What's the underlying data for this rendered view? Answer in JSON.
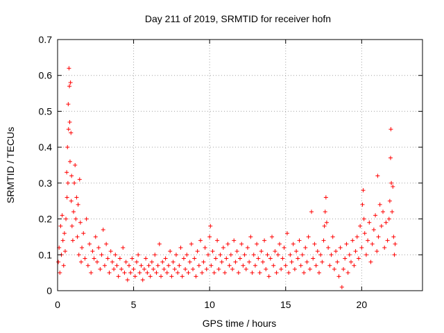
{
  "chart_data": {
    "type": "scatter",
    "title": "Day 211 of 2019, SRMTID for receiver hofn",
    "xlabel": "GPS time / hours",
    "ylabel": "SRMTID / TECUs",
    "xlim": [
      0,
      24
    ],
    "ylim": [
      0,
      0.7
    ],
    "xticks": [
      0,
      5,
      10,
      15,
      20
    ],
    "xtick_labels": [
      "0",
      "5",
      "10",
      "15",
      "20"
    ],
    "yticks": [
      0,
      0.1,
      0.2,
      0.3,
      0.4,
      0.5,
      0.6,
      0.7
    ],
    "ytick_labels": [
      "0",
      "0.1",
      "0.2",
      "0.3",
      "0.4",
      "0.5",
      "0.6",
      "0.7"
    ],
    "grid": true,
    "marker": "+",
    "series": [
      {
        "name": "SRMTID",
        "color": "#ff0000",
        "points": [
          [
            0.05,
            0.08
          ],
          [
            0.1,
            0.12
          ],
          [
            0.15,
            0.05
          ],
          [
            0.2,
            0.18
          ],
          [
            0.25,
            0.1
          ],
          [
            0.3,
            0.21
          ],
          [
            0.35,
            0.14
          ],
          [
            0.4,
            0.07
          ],
          [
            0.45,
            0.16
          ],
          [
            0.5,
            0.11
          ],
          [
            0.55,
            0.2
          ],
          [
            0.6,
            0.33
          ],
          [
            0.62,
            0.26
          ],
          [
            0.65,
            0.4
          ],
          [
            0.68,
            0.3
          ],
          [
            0.7,
            0.52
          ],
          [
            0.72,
            0.45
          ],
          [
            0.75,
            0.62
          ],
          [
            0.78,
            0.57
          ],
          [
            0.8,
            0.47
          ],
          [
            0.82,
            0.36
          ],
          [
            0.85,
            0.58
          ],
          [
            0.88,
            0.44
          ],
          [
            0.9,
            0.25
          ],
          [
            0.92,
            0.32
          ],
          [
            0.95,
            0.18
          ],
          [
            1.0,
            0.14
          ],
          [
            1.05,
            0.22
          ],
          [
            1.1,
            0.3
          ],
          [
            1.15,
            0.35
          ],
          [
            1.2,
            0.2
          ],
          [
            1.25,
            0.26
          ],
          [
            1.3,
            0.15
          ],
          [
            1.35,
            0.24
          ],
          [
            1.4,
            0.1
          ],
          [
            1.45,
            0.31
          ],
          [
            1.5,
            0.19
          ],
          [
            1.55,
            0.08
          ],
          [
            1.6,
            0.12
          ],
          [
            1.7,
            0.16
          ],
          [
            1.8,
            0.09
          ],
          [
            1.9,
            0.2
          ],
          [
            2.0,
            0.07
          ],
          [
            2.1,
            0.13
          ],
          [
            2.2,
            0.05
          ],
          [
            2.3,
            0.11
          ],
          [
            2.4,
            0.09
          ],
          [
            2.5,
            0.15
          ],
          [
            2.6,
            0.08
          ],
          [
            2.7,
            0.12
          ],
          [
            2.8,
            0.06
          ],
          [
            2.9,
            0.1
          ],
          [
            3.0,
            0.17
          ],
          [
            3.1,
            0.07
          ],
          [
            3.2,
            0.13
          ],
          [
            3.3,
            0.09
          ],
          [
            3.4,
            0.05
          ],
          [
            3.5,
            0.11
          ],
          [
            3.6,
            0.08
          ],
          [
            3.7,
            0.06
          ],
          [
            3.8,
            0.1
          ],
          [
            3.9,
            0.07
          ],
          [
            4.0,
            0.04
          ],
          [
            4.1,
            0.09
          ],
          [
            4.2,
            0.06
          ],
          [
            4.3,
            0.12
          ],
          [
            4.4,
            0.05
          ],
          [
            4.5,
            0.08
          ],
          [
            4.6,
            0.03
          ],
          [
            4.7,
            0.07
          ],
          [
            4.8,
            0.05
          ],
          [
            4.9,
            0.09
          ],
          [
            5.0,
            0.06
          ],
          [
            5.1,
            0.04
          ],
          [
            5.2,
            0.08
          ],
          [
            5.3,
            0.1
          ],
          [
            5.4,
            0.05
          ],
          [
            5.5,
            0.07
          ],
          [
            5.6,
            0.03
          ],
          [
            5.7,
            0.06
          ],
          [
            5.8,
            0.09
          ],
          [
            5.9,
            0.05
          ],
          [
            6.0,
            0.07
          ],
          [
            6.1,
            0.04
          ],
          [
            6.2,
            0.08
          ],
          [
            6.3,
            0.06
          ],
          [
            6.4,
            0.1
          ],
          [
            6.5,
            0.05
          ],
          [
            6.6,
            0.07
          ],
          [
            6.7,
            0.13
          ],
          [
            6.8,
            0.04
          ],
          [
            6.9,
            0.08
          ],
          [
            7.0,
            0.06
          ],
          [
            7.1,
            0.09
          ],
          [
            7.2,
            0.05
          ],
          [
            7.3,
            0.07
          ],
          [
            7.4,
            0.11
          ],
          [
            7.5,
            0.04
          ],
          [
            7.6,
            0.08
          ],
          [
            7.7,
            0.06
          ],
          [
            7.8,
            0.1
          ],
          [
            7.9,
            0.05
          ],
          [
            8.0,
            0.07
          ],
          [
            8.1,
            0.12
          ],
          [
            8.2,
            0.04
          ],
          [
            8.3,
            0.09
          ],
          [
            8.4,
            0.06
          ],
          [
            8.5,
            0.1
          ],
          [
            8.6,
            0.05
          ],
          [
            8.7,
            0.08
          ],
          [
            8.8,
            0.13
          ],
          [
            8.9,
            0.06
          ],
          [
            9.0,
            0.09
          ],
          [
            9.1,
            0.04
          ],
          [
            9.2,
            0.11
          ],
          [
            9.3,
            0.07
          ],
          [
            9.4,
            0.14
          ],
          [
            9.5,
            0.05
          ],
          [
            9.6,
            0.08
          ],
          [
            9.7,
            0.12
          ],
          [
            9.8,
            0.06
          ],
          [
            9.9,
            0.1
          ],
          [
            10.0,
            0.15
          ],
          [
            10.05,
            0.18
          ],
          [
            10.1,
            0.07
          ],
          [
            10.2,
            0.11
          ],
          [
            10.3,
            0.05
          ],
          [
            10.4,
            0.09
          ],
          [
            10.5,
            0.14
          ],
          [
            10.6,
            0.06
          ],
          [
            10.7,
            0.1
          ],
          [
            10.8,
            0.08
          ],
          [
            10.9,
            0.12
          ],
          [
            11.0,
            0.05
          ],
          [
            11.1,
            0.09
          ],
          [
            11.2,
            0.13
          ],
          [
            11.3,
            0.07
          ],
          [
            11.4,
            0.1
          ],
          [
            11.5,
            0.06
          ],
          [
            11.6,
            0.14
          ],
          [
            11.7,
            0.08
          ],
          [
            11.8,
            0.11
          ],
          [
            11.9,
            0.05
          ],
          [
            12.0,
            0.09
          ],
          [
            12.1,
            0.13
          ],
          [
            12.2,
            0.07
          ],
          [
            12.3,
            0.1
          ],
          [
            12.4,
            0.06
          ],
          [
            12.5,
            0.12
          ],
          [
            12.6,
            0.08
          ],
          [
            12.7,
            0.15
          ],
          [
            12.8,
            0.05
          ],
          [
            12.9,
            0.1
          ],
          [
            13.0,
            0.07
          ],
          [
            13.1,
            0.13
          ],
          [
            13.2,
            0.09
          ],
          [
            13.3,
            0.05
          ],
          [
            13.4,
            0.11
          ],
          [
            13.5,
            0.08
          ],
          [
            13.6,
            0.14
          ],
          [
            13.7,
            0.06
          ],
          [
            13.8,
            0.1
          ],
          [
            13.9,
            0.04
          ],
          [
            14.0,
            0.09
          ],
          [
            14.1,
            0.15
          ],
          [
            14.2,
            0.07
          ],
          [
            14.3,
            0.11
          ],
          [
            14.4,
            0.05
          ],
          [
            14.5,
            0.1
          ],
          [
            14.6,
            0.13
          ],
          [
            14.7,
            0.06
          ],
          [
            14.8,
            0.09
          ],
          [
            14.9,
            0.12
          ],
          [
            15.0,
            0.07
          ],
          [
            15.1,
            0.16
          ],
          [
            15.2,
            0.05
          ],
          [
            15.3,
            0.1
          ],
          [
            15.4,
            0.08
          ],
          [
            15.5,
            0.13
          ],
          [
            15.6,
            0.06
          ],
          [
            15.7,
            0.11
          ],
          [
            15.8,
            0.09
          ],
          [
            15.9,
            0.14
          ],
          [
            16.0,
            0.07
          ],
          [
            16.1,
            0.1
          ],
          [
            16.2,
            0.05
          ],
          [
            16.3,
            0.12
          ],
          [
            16.4,
            0.08
          ],
          [
            16.5,
            0.15
          ],
          [
            16.6,
            0.06
          ],
          [
            16.7,
            0.22
          ],
          [
            16.8,
            0.09
          ],
          [
            16.9,
            0.13
          ],
          [
            17.0,
            0.07
          ],
          [
            17.1,
            0.11
          ],
          [
            17.2,
            0.05
          ],
          [
            17.3,
            0.1
          ],
          [
            17.4,
            0.08
          ],
          [
            17.5,
            0.14
          ],
          [
            17.55,
            0.18
          ],
          [
            17.6,
            0.22
          ],
          [
            17.65,
            0.26
          ],
          [
            17.7,
            0.19
          ],
          [
            17.8,
            0.12
          ],
          [
            17.9,
            0.07
          ],
          [
            18.0,
            0.1
          ],
          [
            18.1,
            0.15
          ],
          [
            18.2,
            0.06
          ],
          [
            18.3,
            0.11
          ],
          [
            18.4,
            0.08
          ],
          [
            18.5,
            0.04
          ],
          [
            18.6,
            0.12
          ],
          [
            18.7,
            0.01
          ],
          [
            18.8,
            0.06
          ],
          [
            18.9,
            0.09
          ],
          [
            19.0,
            0.13
          ],
          [
            19.1,
            0.05
          ],
          [
            19.2,
            0.1
          ],
          [
            19.3,
            0.08
          ],
          [
            19.4,
            0.14
          ],
          [
            19.5,
            0.07
          ],
          [
            19.6,
            0.11
          ],
          [
            19.7,
            0.15
          ],
          [
            19.8,
            0.09
          ],
          [
            19.9,
            0.18
          ],
          [
            20.0,
            0.12
          ],
          [
            20.05,
            0.24
          ],
          [
            20.1,
            0.28
          ],
          [
            20.15,
            0.2
          ],
          [
            20.2,
            0.16
          ],
          [
            20.3,
            0.1
          ],
          [
            20.4,
            0.14
          ],
          [
            20.5,
            0.19
          ],
          [
            20.6,
            0.08
          ],
          [
            20.7,
            0.13
          ],
          [
            20.8,
            0.17
          ],
          [
            20.9,
            0.21
          ],
          [
            21.0,
            0.11
          ],
          [
            21.05,
            0.32
          ],
          [
            21.1,
            0.15
          ],
          [
            21.2,
            0.24
          ],
          [
            21.3,
            0.18
          ],
          [
            21.4,
            0.22
          ],
          [
            21.5,
            0.12
          ],
          [
            21.6,
            0.19
          ],
          [
            21.7,
            0.14
          ],
          [
            21.8,
            0.2
          ],
          [
            21.85,
            0.25
          ],
          [
            21.9,
            0.37
          ],
          [
            21.92,
            0.45
          ],
          [
            21.95,
            0.3
          ],
          [
            22.0,
            0.22
          ],
          [
            22.05,
            0.29
          ],
          [
            22.1,
            0.15
          ],
          [
            22.15,
            0.1
          ],
          [
            22.2,
            0.13
          ]
        ]
      }
    ]
  }
}
